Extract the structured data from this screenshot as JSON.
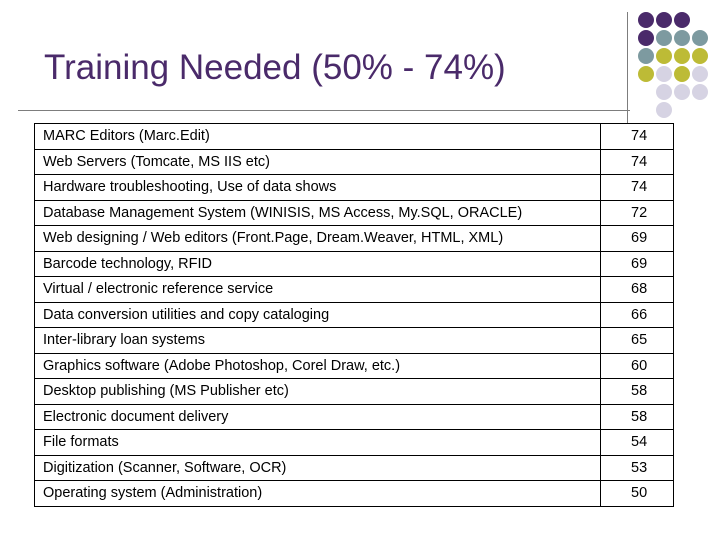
{
  "title": "Training Needed (50% - 74%)",
  "colors": {
    "title": "#4a2a6a",
    "dot_purple": "#4a2a6a",
    "dot_teal": "#7d9aa0",
    "dot_olive": "#bdbb36",
    "dot_lilac": "#d6d3e3",
    "rule": "#7d7d7d"
  },
  "decor": {
    "dot_grid": [
      [
        "purple",
        "purple",
        "purple",
        "none"
      ],
      [
        "purple",
        "teal",
        "teal",
        "teal"
      ],
      [
        "teal",
        "olive",
        "olive",
        "olive"
      ],
      [
        "olive",
        "lilac",
        "olive",
        "lilac"
      ],
      [
        "none",
        "lilac",
        "lilac",
        "lilac"
      ],
      [
        "none",
        "lilac",
        "none",
        "none"
      ]
    ]
  },
  "table": {
    "rows": [
      {
        "label": "MARC Editors (Marc.Edit)",
        "value": "74"
      },
      {
        "label": "Web Servers (Tomcate, MS IIS etc)",
        "value": "74"
      },
      {
        "label": "Hardware troubleshooting, Use of data shows",
        "value": "74"
      },
      {
        "label": "Database Management System (WINISIS, MS Access, My.SQL, ORACLE)",
        "value": "72"
      },
      {
        "label": "Web designing / Web editors (Front.Page, Dream.Weaver,  HTML, XML)",
        "value": "69"
      },
      {
        "label": "Barcode technology, RFID",
        "value": "69"
      },
      {
        "label": "Virtual / electronic reference service",
        "value": "68"
      },
      {
        "label": "Data conversion utilities and copy cataloging",
        "value": "66"
      },
      {
        "label": "Inter-library loan systems",
        "value": "65"
      },
      {
        "label": "Graphics software (Adobe Photoshop, Corel Draw, etc.)",
        "value": "60"
      },
      {
        "label": "Desktop publishing (MS Publisher etc)",
        "value": "58"
      },
      {
        "label": "Electronic document delivery",
        "value": "58"
      },
      {
        "label": "File formats",
        "value": "54"
      },
      {
        "label": "Digitization (Scanner, Software, OCR)",
        "value": "53"
      },
      {
        "label": "Operating system (Administration)",
        "value": "50"
      }
    ]
  }
}
